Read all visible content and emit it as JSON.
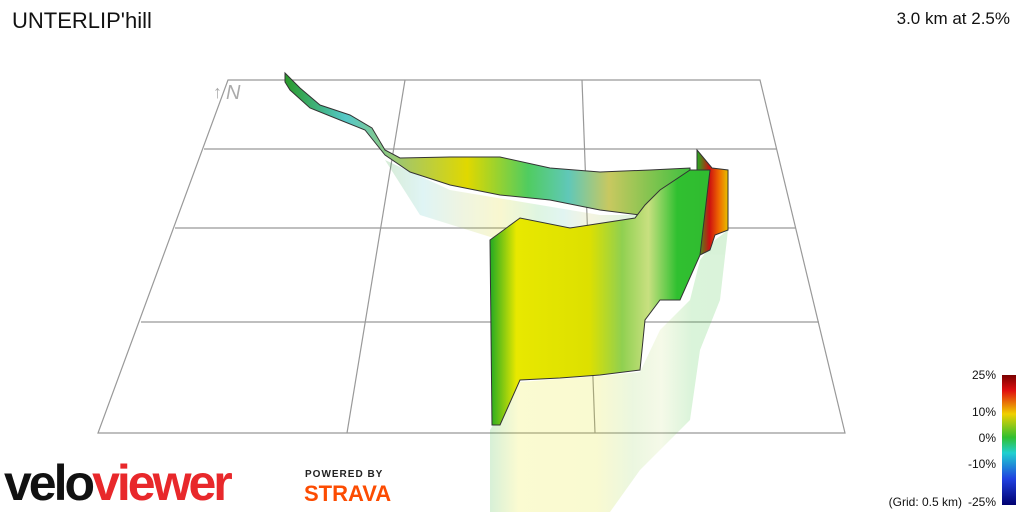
{
  "header": {
    "title": "UNTERLIP'hill",
    "summary": "3.0 km at 2.5%"
  },
  "compass": "N",
  "legend": {
    "labels": [
      "25%",
      "10%",
      "0%",
      "-10%",
      "-25%"
    ],
    "grid_note": "(Grid: 0.5 km)"
  },
  "logo": {
    "velo": "velo",
    "viewer": "viewer",
    "powered_by": "POWERED BY",
    "strava": "STRAVA"
  }
}
